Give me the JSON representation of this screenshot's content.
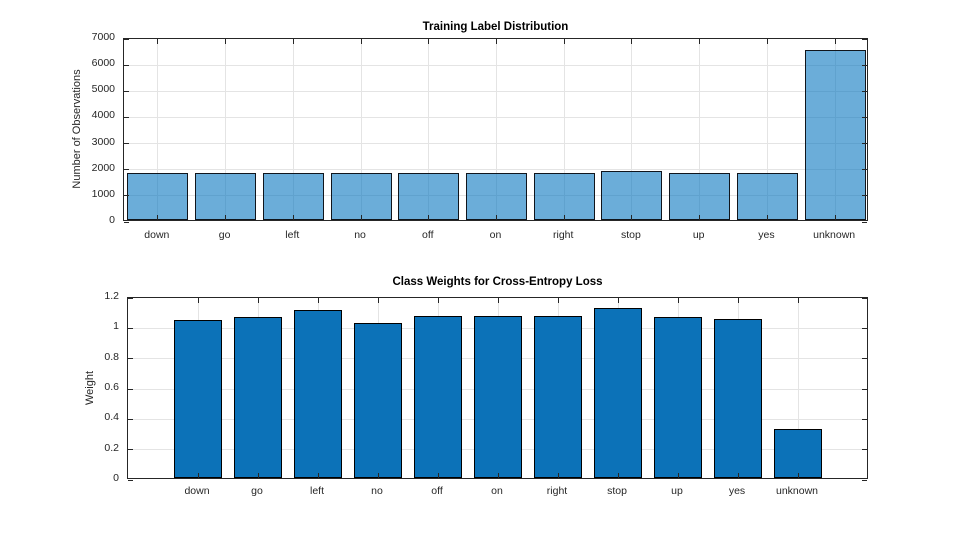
{
  "window": {
    "background": "#ffffff",
    "axis_color": "#262626",
    "grid_color": "#e4e4e4"
  },
  "chart_data": [
    {
      "type": "bar",
      "title": "Training Label Distribution",
      "xlabel": "",
      "ylabel": "Number of Observations",
      "categories": [
        "down",
        "go",
        "left",
        "no",
        "off",
        "on",
        "right",
        "stop",
        "up",
        "yes",
        "unknown"
      ],
      "values": [
        1780,
        1780,
        1780,
        1780,
        1780,
        1780,
        1780,
        1860,
        1780,
        1780,
        6490
      ],
      "ylim": [
        0,
        7000
      ],
      "yticks": [
        0,
        1000,
        2000,
        3000,
        4000,
        5000,
        6000,
        7000
      ],
      "ytick_labels": [
        "0",
        "1000",
        "2000",
        "3000",
        "4000",
        "5000",
        "6000",
        "7000"
      ],
      "grid": "on",
      "legend": "none",
      "bar_style": "histogram-wide",
      "bar_fill": "rgba(0,114,189,0.58)",
      "bar_edge": "#10151c"
    },
    {
      "type": "bar",
      "title": "Class Weights for Cross-Entropy Loss",
      "xlabel": "",
      "ylabel": "Weight",
      "categories": [
        "down",
        "go",
        "left",
        "no",
        "off",
        "on",
        "right",
        "stop",
        "up",
        "yes",
        "unknown"
      ],
      "values": [
        1.04,
        1.06,
        1.11,
        1.02,
        1.07,
        1.07,
        1.07,
        1.12,
        1.06,
        1.05,
        0.32
      ],
      "ylim": [
        0,
        1.2
      ],
      "yticks": [
        0,
        0.2,
        0.4,
        0.6,
        0.8,
        1,
        1.2
      ],
      "ytick_labels": [
        "0",
        "0.2",
        "0.4",
        "0.6",
        "0.8",
        "1",
        "1.2"
      ],
      "grid": "on",
      "legend": "none",
      "bar_style": "bar-default",
      "bar_fill": "#0c72b8",
      "bar_edge": "#000000"
    }
  ]
}
